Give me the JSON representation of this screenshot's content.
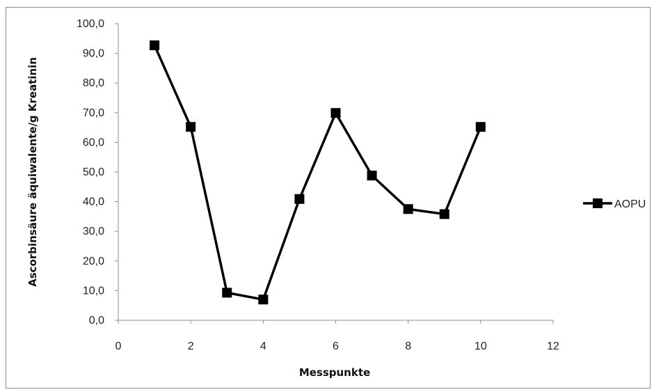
{
  "chart_data": {
    "type": "line",
    "title": "",
    "xlabel": "Messpunkte",
    "ylabel": "Ascorbinsäure äquiwalente/g Kreatinin",
    "xlim": [
      0,
      12
    ],
    "ylim": [
      0,
      100
    ],
    "xticks": [
      "0",
      "2",
      "4",
      "6",
      "8",
      "10",
      "12"
    ],
    "yticks": [
      "0,0",
      "10,0",
      "20,0",
      "30,0",
      "40,0",
      "50,0",
      "60,0",
      "70,0",
      "80,0",
      "90,0",
      "100,0"
    ],
    "grid": false,
    "legend_position": "right",
    "series": [
      {
        "name": "AOPU",
        "color": "#000000",
        "marker": "square",
        "x": [
          1,
          2,
          3,
          4,
          5,
          6,
          7,
          8,
          9,
          10
        ],
        "y": [
          92.7,
          65.2,
          9.3,
          7.0,
          40.9,
          69.9,
          48.8,
          37.5,
          35.8,
          65.2
        ]
      }
    ]
  }
}
